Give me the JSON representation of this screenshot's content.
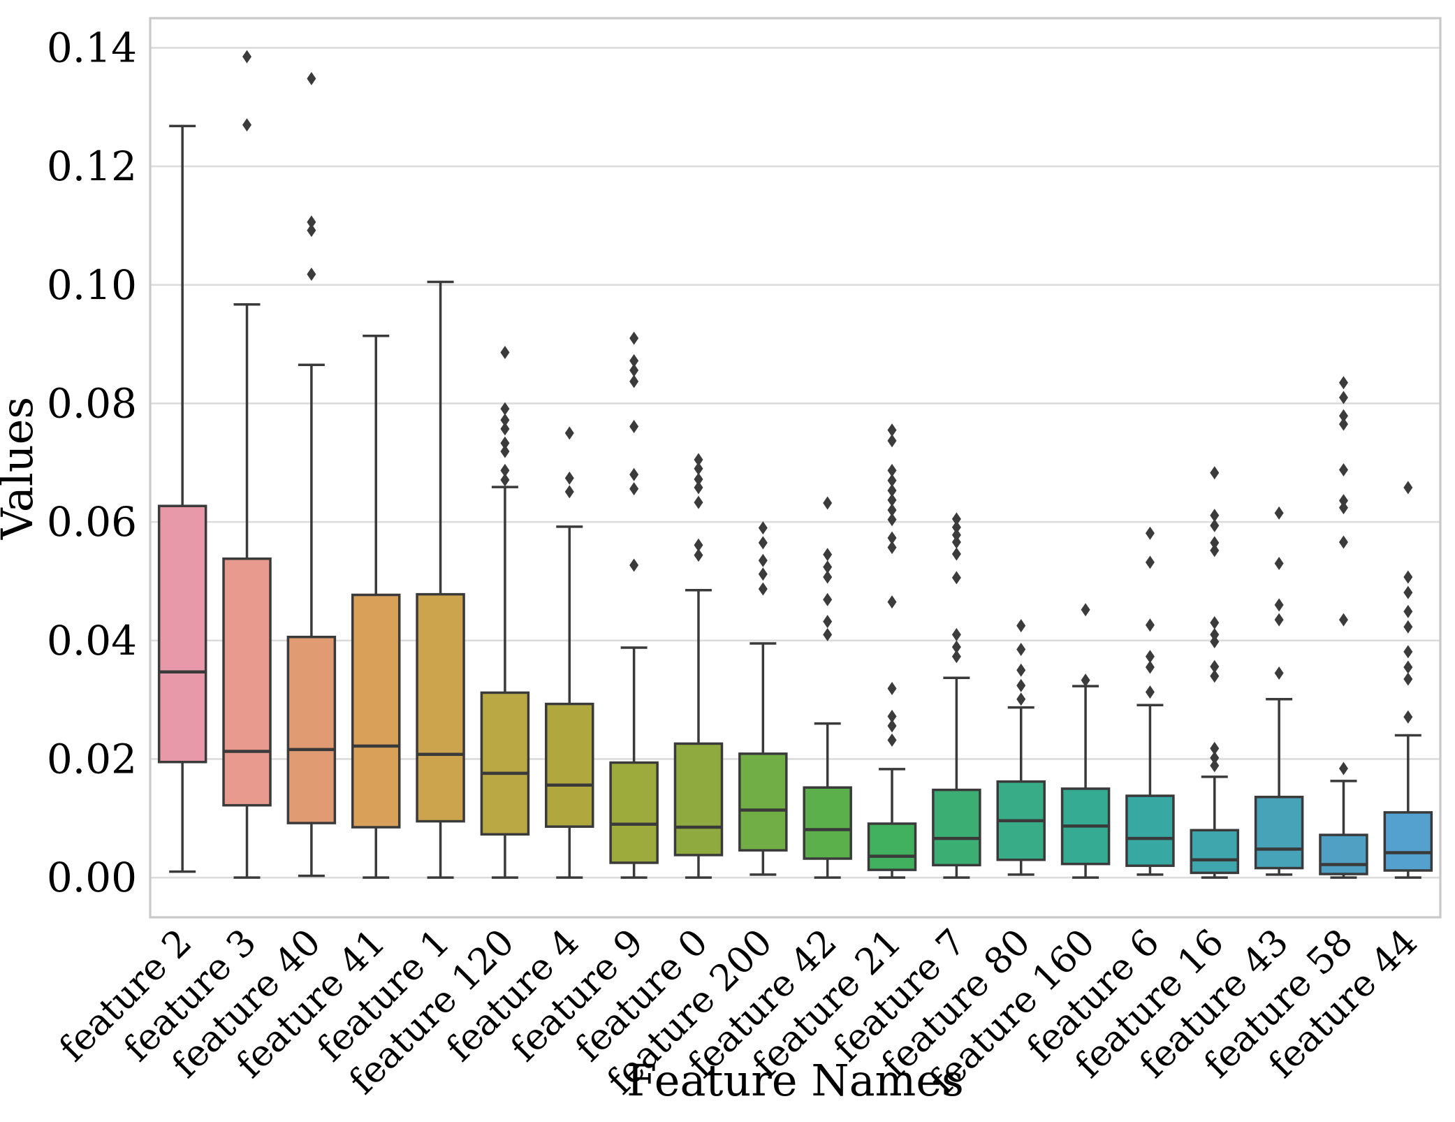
{
  "chart_data": {
    "type": "box",
    "title": "",
    "xlabel": "Feature Names",
    "ylabel": "Values",
    "grid": "horizontal-only",
    "legend": "none",
    "marker": "diamond-outliers",
    "ylim": [
      -0.0067,
      0.145
    ],
    "yticks": [
      0.0,
      0.02,
      0.04,
      0.06,
      0.08,
      0.1,
      0.12,
      0.14
    ],
    "ytick_labels": [
      "0.00",
      "0.02",
      "0.04",
      "0.06",
      "0.08",
      "0.10",
      "0.12",
      "0.14"
    ],
    "categories": [
      "feature 2",
      "feature 3",
      "feature 40",
      "feature 41",
      "feature 1",
      "feature 120",
      "feature 4",
      "feature 9",
      "feature 0",
      "feature 200",
      "feature 42",
      "feature 21",
      "feature 7",
      "feature 80",
      "feature 160",
      "feature 6",
      "feature 16",
      "feature 43",
      "feature 58",
      "feature 44"
    ],
    "series": [
      {
        "name": "feature 2",
        "color": "#e899a9",
        "whisker_low": 0.001,
        "q1": 0.0195,
        "median": 0.0347,
        "q3": 0.0627,
        "whisker_high": 0.1268,
        "outliers": []
      },
      {
        "name": "feature 3",
        "color": "#e89a8e",
        "whisker_low": 0.0,
        "q1": 0.0122,
        "median": 0.0213,
        "q3": 0.0538,
        "whisker_high": 0.0967,
        "outliers": [
          0.1385,
          0.127
        ]
      },
      {
        "name": "feature 40",
        "color": "#e19b72",
        "whisker_low": 0.0003,
        "q1": 0.0092,
        "median": 0.0216,
        "q3": 0.0406,
        "whisker_high": 0.0865,
        "outliers": [
          0.1348,
          0.1106,
          0.1092,
          0.1018
        ]
      },
      {
        "name": "feature 41",
        "color": "#d9a05a",
        "whisker_low": 0.0,
        "q1": 0.0085,
        "median": 0.0222,
        "q3": 0.0477,
        "whisker_high": 0.0914,
        "outliers": []
      },
      {
        "name": "feature 1",
        "color": "#cba44d",
        "whisker_low": 0.0,
        "q1": 0.0095,
        "median": 0.0208,
        "q3": 0.0478,
        "whisker_high": 0.1005,
        "outliers": []
      },
      {
        "name": "feature 120",
        "color": "#b9a844",
        "whisker_low": 0.0,
        "q1": 0.0073,
        "median": 0.0176,
        "q3": 0.0312,
        "whisker_high": 0.0659,
        "outliers": [
          0.0886,
          0.0791,
          0.0772,
          0.0757,
          0.0733,
          0.0719,
          0.0687,
          0.0671
        ]
      },
      {
        "name": "feature 4",
        "color": "#b0a83f",
        "whisker_low": 0.0,
        "q1": 0.0086,
        "median": 0.0156,
        "q3": 0.0293,
        "whisker_high": 0.0592,
        "outliers": [
          0.075,
          0.0674,
          0.0651
        ]
      },
      {
        "name": "feature 9",
        "color": "#9dab3d",
        "whisker_low": 0.0,
        "q1": 0.0025,
        "median": 0.009,
        "q3": 0.0194,
        "whisker_high": 0.0388,
        "outliers": [
          0.091,
          0.0872,
          0.0856,
          0.0837,
          0.0761,
          0.068,
          0.0656,
          0.0527
        ]
      },
      {
        "name": "feature 0",
        "color": "#8fab3f",
        "whisker_low": 0.0,
        "q1": 0.0038,
        "median": 0.0085,
        "q3": 0.0226,
        "whisker_high": 0.0485,
        "outliers": [
          0.0705,
          0.069,
          0.0672,
          0.0658,
          0.0633,
          0.0561,
          0.0544
        ]
      },
      {
        "name": "feature 200",
        "color": "#72ae46",
        "whisker_low": 0.0005,
        "q1": 0.0046,
        "median": 0.0114,
        "q3": 0.0209,
        "whisker_high": 0.0395,
        "outliers": [
          0.059,
          0.0565,
          0.0535,
          0.0512,
          0.0487
        ]
      },
      {
        "name": "feature 42",
        "color": "#5bb04c",
        "whisker_low": 0.0,
        "q1": 0.0032,
        "median": 0.0081,
        "q3": 0.0152,
        "whisker_high": 0.026,
        "outliers": [
          0.0632,
          0.0545,
          0.0524,
          0.0507,
          0.0469,
          0.0432,
          0.041
        ]
      },
      {
        "name": "feature 21",
        "color": "#41b160",
        "whisker_low": 0.0,
        "q1": 0.0013,
        "median": 0.0036,
        "q3": 0.0091,
        "whisker_high": 0.0183,
        "outliers": [
          0.0755,
          0.0737,
          0.0687,
          0.067,
          0.0653,
          0.0637,
          0.062,
          0.0604,
          0.0573,
          0.0557,
          0.0465,
          0.0319,
          0.0272,
          0.0256,
          0.0232
        ]
      },
      {
        "name": "feature 7",
        "color": "#3bae73",
        "whisker_low": 0.0,
        "q1": 0.0021,
        "median": 0.0066,
        "q3": 0.0148,
        "whisker_high": 0.0337,
        "outliers": [
          0.0605,
          0.0591,
          0.0578,
          0.0566,
          0.0546,
          0.0506,
          0.041,
          0.0389,
          0.0373
        ]
      },
      {
        "name": "feature 80",
        "color": "#38ac86",
        "whisker_low": 0.0005,
        "q1": 0.003,
        "median": 0.0096,
        "q3": 0.0162,
        "whisker_high": 0.0287,
        "outliers": [
          0.0425,
          0.0385,
          0.035,
          0.0324,
          0.0301
        ]
      },
      {
        "name": "feature 160",
        "color": "#35ab94",
        "whisker_low": 0.0,
        "q1": 0.0023,
        "median": 0.0087,
        "q3": 0.015,
        "whisker_high": 0.0323,
        "outliers": [
          0.0452,
          0.0333
        ]
      },
      {
        "name": "feature 6",
        "color": "#37a9a2",
        "whisker_low": 0.0005,
        "q1": 0.002,
        "median": 0.0066,
        "q3": 0.0138,
        "whisker_high": 0.0291,
        "outliers": [
          0.0581,
          0.0532,
          0.0426,
          0.0373,
          0.0355,
          0.0313
        ]
      },
      {
        "name": "feature 16",
        "color": "#3fa6ad",
        "whisker_low": 0.0,
        "q1": 0.0008,
        "median": 0.003,
        "q3": 0.008,
        "whisker_high": 0.017,
        "outliers": [
          0.0683,
          0.0611,
          0.0594,
          0.0565,
          0.0552,
          0.043,
          0.041,
          0.0398,
          0.0356,
          0.034,
          0.0218,
          0.0202,
          0.0189
        ]
      },
      {
        "name": "feature 43",
        "color": "#47a3b8",
        "whisker_low": 0.0005,
        "q1": 0.0016,
        "median": 0.0048,
        "q3": 0.0136,
        "whisker_high": 0.0301,
        "outliers": [
          0.0615,
          0.053,
          0.046,
          0.0435,
          0.0345
        ]
      },
      {
        "name": "feature 58",
        "color": "#4fa0c2",
        "whisker_low": 0.0,
        "q1": 0.0006,
        "median": 0.0022,
        "q3": 0.0072,
        "whisker_high": 0.0163,
        "outliers": [
          0.0835,
          0.081,
          0.0779,
          0.0765,
          0.0688,
          0.0636,
          0.0624,
          0.0566,
          0.0435,
          0.0184
        ]
      },
      {
        "name": "feature 44",
        "color": "#54a0cf",
        "whisker_low": 0.0,
        "q1": 0.0012,
        "median": 0.0042,
        "q3": 0.011,
        "whisker_high": 0.024,
        "outliers": [
          0.0658,
          0.0507,
          0.0481,
          0.0449,
          0.0423,
          0.0381,
          0.0355,
          0.0335,
          0.0271
        ]
      }
    ]
  },
  "style": {
    "background": "#ffffff",
    "box_edge_color": "#3a3a3a",
    "outlier_color": "#3b3b3b",
    "grid_color": "#dcdcdc",
    "frame_color": "#c9c9c9",
    "text_color": "#000000"
  }
}
